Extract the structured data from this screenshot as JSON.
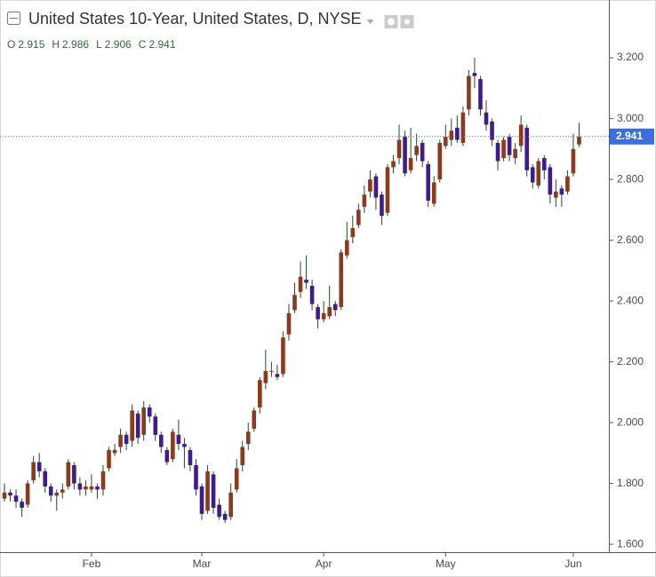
{
  "chart_data": {
    "type": "candlestick",
    "title": "United States 10-Year, United States, D, NYSE",
    "ohlc_labels": [
      "O",
      "H",
      "L",
      "C"
    ],
    "categories": [
      null,
      null,
      null,
      null,
      null,
      null,
      null,
      null,
      null,
      null,
      null,
      null,
      null,
      null,
      null,
      "Feb",
      null,
      null,
      null,
      null,
      null,
      null,
      null,
      null,
      null,
      null,
      null,
      null,
      null,
      null,
      null,
      null,
      null,
      null,
      "Mar",
      null,
      null,
      null,
      null,
      null,
      null,
      null,
      null,
      null,
      null,
      null,
      null,
      null,
      null,
      null,
      null,
      null,
      null,
      null,
      null,
      "Apr",
      null,
      null,
      null,
      null,
      null,
      null,
      null,
      null,
      null,
      null,
      null,
      null,
      null,
      null,
      null,
      null,
      null,
      null,
      null,
      null,
      "May",
      null,
      null,
      null,
      null,
      null,
      null,
      null,
      null,
      null,
      null,
      null,
      null,
      null,
      null,
      null,
      null,
      null,
      null,
      null,
      null,
      null,
      "Jun",
      null
    ],
    "open": [
      1.75,
      1.77,
      1.76,
      1.74,
      1.73,
      1.81,
      1.87,
      1.84,
      1.79,
      1.76,
      1.77,
      1.79,
      1.86,
      1.8,
      1.78,
      1.78,
      1.79,
      1.78,
      1.85,
      1.9,
      1.92,
      1.96,
      1.94,
      2.03,
      1.96,
      2.05,
      2.02,
      1.96,
      1.91,
      1.88,
      1.96,
      1.93,
      1.91,
      1.86,
      1.79,
      1.71,
      1.83,
      1.73,
      1.7,
      1.69,
      1.78,
      1.86,
      1.93,
      1.98,
      2.05,
      2.13,
      2.17,
      2.16,
      2.16,
      2.29,
      2.37,
      2.43,
      2.47,
      2.45,
      2.38,
      2.34,
      2.35,
      2.39,
      2.38,
      2.55,
      2.61,
      2.65,
      2.71,
      2.76,
      2.81,
      2.75,
      2.69,
      2.84,
      2.87,
      2.94,
      2.83,
      2.88,
      2.92,
      2.85,
      2.72,
      2.8,
      2.91,
      2.93,
      2.97,
      2.92,
      3.03,
      3.15,
      3.13,
      3.02,
      2.99,
      2.92,
      2.87,
      2.94,
      2.87,
      2.91,
      2.97,
      2.84,
      2.78,
      2.87,
      2.84,
      2.74,
      2.77,
      2.76,
      2.82,
      2.915
    ],
    "high": [
      1.8,
      1.78,
      1.78,
      1.75,
      1.81,
      1.89,
      1.9,
      1.85,
      1.8,
      1.78,
      1.8,
      1.88,
      1.87,
      1.82,
      1.81,
      1.83,
      1.8,
      1.86,
      1.92,
      1.93,
      1.98,
      1.97,
      2.06,
      2.04,
      2.07,
      2.06,
      2.03,
      1.97,
      1.92,
      1.98,
      2.01,
      1.95,
      1.92,
      1.88,
      1.8,
      1.86,
      1.84,
      1.75,
      1.71,
      1.8,
      1.88,
      1.94,
      2.0,
      2.05,
      2.15,
      2.24,
      2.2,
      2.19,
      2.3,
      2.39,
      2.46,
      2.53,
      2.55,
      2.47,
      2.39,
      2.4,
      2.45,
      2.4,
      2.57,
      2.66,
      2.68,
      2.72,
      2.78,
      2.83,
      2.82,
      2.76,
      2.85,
      2.88,
      2.98,
      2.96,
      2.97,
      2.95,
      2.93,
      2.86,
      2.81,
      2.93,
      2.98,
      3.0,
      3.01,
      3.04,
      3.16,
      3.2,
      3.14,
      3.06,
      3.0,
      2.93,
      2.94,
      2.95,
      2.92,
      3.01,
      2.98,
      2.85,
      2.87,
      2.88,
      2.85,
      2.8,
      2.78,
      2.83,
      2.95,
      2.986
    ],
    "low": [
      1.74,
      1.74,
      1.72,
      1.69,
      1.72,
      1.8,
      1.82,
      1.77,
      1.74,
      1.71,
      1.75,
      1.78,
      1.78,
      1.76,
      1.76,
      1.77,
      1.75,
      1.76,
      1.84,
      1.89,
      1.9,
      1.91,
      1.92,
      1.93,
      1.94,
      2.0,
      1.94,
      1.9,
      1.86,
      1.87,
      1.91,
      1.85,
      1.84,
      1.76,
      1.68,
      1.7,
      1.7,
      1.68,
      1.67,
      1.68,
      1.77,
      1.84,
      1.91,
      1.97,
      2.03,
      2.11,
      2.15,
      2.14,
      2.15,
      2.27,
      2.36,
      2.41,
      2.44,
      2.37,
      2.31,
      2.33,
      2.34,
      2.35,
      2.37,
      2.54,
      2.59,
      2.64,
      2.69,
      2.74,
      2.7,
      2.65,
      2.68,
      2.82,
      2.85,
      2.81,
      2.82,
      2.86,
      2.84,
      2.71,
      2.71,
      2.79,
      2.9,
      2.91,
      2.92,
      2.91,
      3.01,
      3.1,
      3.01,
      2.96,
      2.91,
      2.83,
      2.86,
      2.86,
      2.85,
      2.89,
      2.81,
      2.77,
      2.77,
      2.8,
      2.72,
      2.71,
      2.71,
      2.75,
      2.81,
      2.906
    ],
    "close": [
      1.77,
      1.76,
      1.74,
      1.72,
      1.8,
      1.87,
      1.84,
      1.79,
      1.76,
      1.77,
      1.78,
      1.87,
      1.8,
      1.78,
      1.79,
      1.79,
      1.78,
      1.84,
      1.91,
      1.91,
      1.96,
      1.93,
      2.04,
      1.95,
      2.05,
      2.02,
      1.96,
      1.92,
      1.87,
      1.97,
      1.93,
      1.92,
      1.86,
      1.78,
      1.7,
      1.84,
      1.72,
      1.69,
      1.68,
      1.77,
      1.85,
      1.92,
      1.97,
      2.04,
      2.14,
      2.17,
      2.17,
      2.15,
      2.28,
      2.36,
      2.42,
      2.48,
      2.46,
      2.39,
      2.34,
      2.36,
      2.38,
      2.37,
      2.56,
      2.6,
      2.64,
      2.7,
      2.75,
      2.8,
      2.74,
      2.68,
      2.84,
      2.86,
      2.93,
      2.82,
      2.87,
      2.91,
      2.86,
      2.73,
      2.79,
      2.92,
      2.94,
      2.96,
      2.93,
      3.02,
      3.14,
      3.14,
      3.03,
      2.98,
      2.93,
      2.86,
      2.93,
      2.88,
      2.9,
      2.98,
      2.83,
      2.79,
      2.86,
      2.83,
      2.75,
      2.76,
      2.75,
      2.81,
      2.9,
      2.941
    ],
    "up_color": "#8b3a1e",
    "down_color": "#3f1c8c",
    "wick_color": "#1e4d2b",
    "price_line_color": "#3d6ee0",
    "ylim": [
      1.574,
      3.39
    ],
    "yticks": [
      {
        "value": 1.6,
        "label": "1.600"
      },
      {
        "value": 1.8,
        "label": "1.800"
      },
      {
        "value": 2.0,
        "label": "2.000"
      },
      {
        "value": 2.2,
        "label": "2.200"
      },
      {
        "value": 2.4,
        "label": "2.400"
      },
      {
        "value": 2.6,
        "label": "2.600"
      },
      {
        "value": 2.8,
        "label": "2.800"
      },
      {
        "value": 3.0,
        "label": "3.000"
      },
      {
        "value": 3.2,
        "label": "3.200"
      }
    ]
  }
}
